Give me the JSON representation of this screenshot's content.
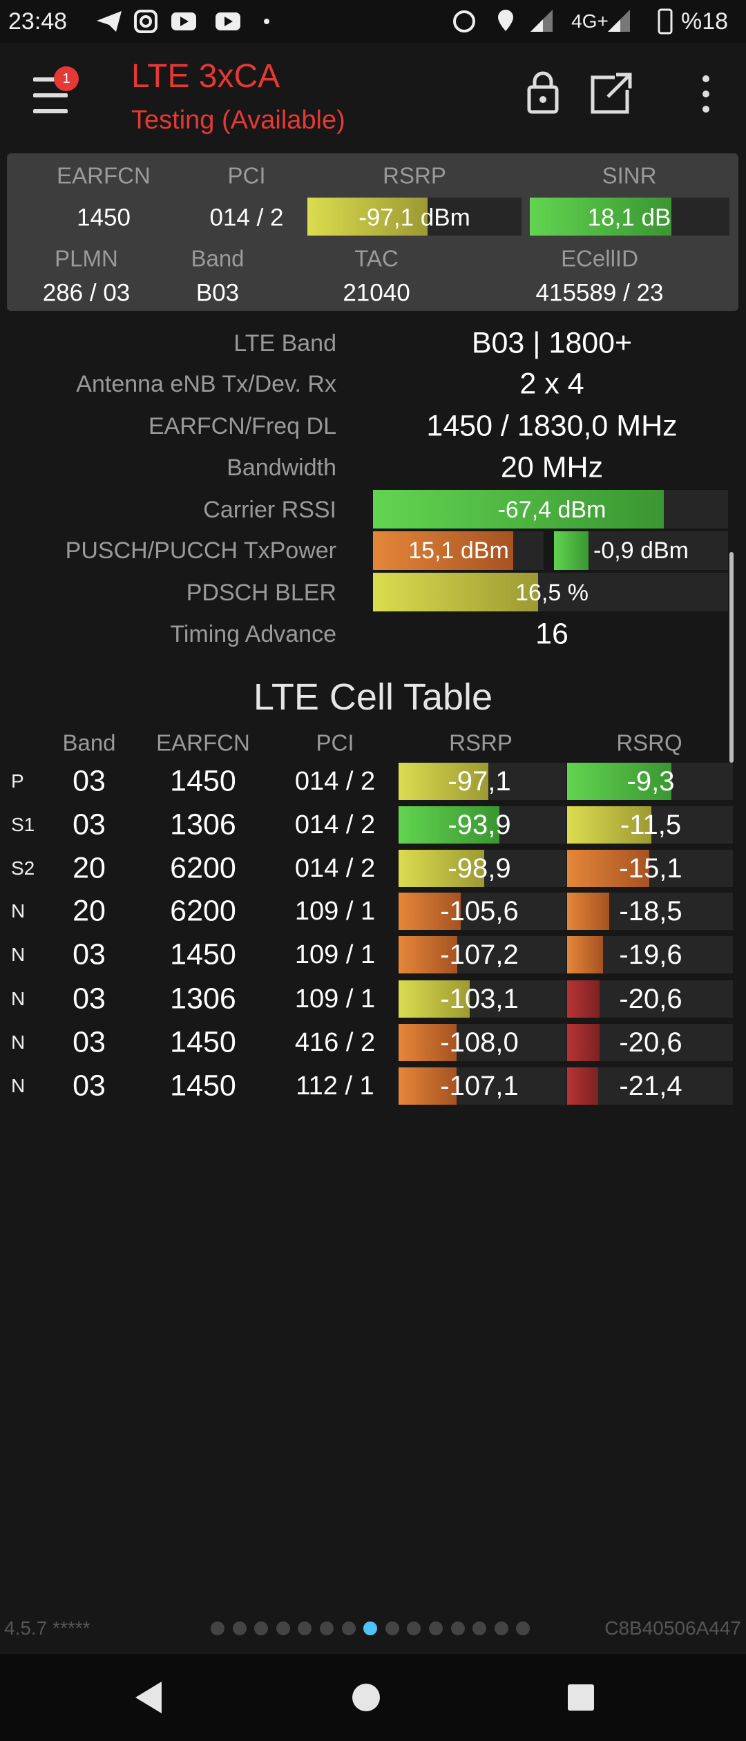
{
  "status_bar": {
    "time": "23:48",
    "network": "4G+",
    "battery": "%18"
  },
  "app_bar": {
    "badge": "1",
    "title": "LTE 3xCA",
    "subtitle": "Testing (Available)"
  },
  "summary": {
    "headers_1": [
      "EARFCN",
      "PCI",
      "RSRP",
      "SINR"
    ],
    "values_1": [
      "1450",
      "014 / 2",
      "-97,1 dBm",
      "18,1 dB"
    ],
    "headers_2": [
      "PLMN",
      "Band",
      "TAC",
      "ECellID"
    ],
    "values_2": [
      "286 / 03",
      "B03",
      "21040",
      "415589 / 23"
    ]
  },
  "details": [
    {
      "label": "LTE Band",
      "value": "B03 | 1800+"
    },
    {
      "label": "Antenna eNB Tx/Dev. Rx",
      "value": "2 x 4"
    },
    {
      "label": "EARFCN/Freq DL",
      "value": "1450 / 1830,0 MHz"
    },
    {
      "label": "Bandwidth",
      "value": "20 MHz"
    },
    {
      "label": "Carrier RSSI",
      "value": "-67,4 dBm"
    },
    {
      "label": "PUSCH/PUCCH TxPower",
      "values": [
        "15,1 dBm",
        "-0,9 dBm"
      ]
    },
    {
      "label": "PDSCH BLER",
      "value": "16,5 %"
    },
    {
      "label": "Timing Advance",
      "value": "16"
    }
  ],
  "cell_table": {
    "title": "LTE Cell Table",
    "headers": [
      "Band",
      "EARFCN",
      "PCI",
      "RSRP",
      "RSRQ"
    ],
    "rows": [
      [
        "P",
        "03",
        "1450",
        "014 / 2",
        "-97,1",
        "-9,3"
      ],
      [
        "S1",
        "03",
        "1306",
        "014 / 2",
        "-93,9",
        "-11,5"
      ],
      [
        "S2",
        "20",
        "6200",
        "014 / 2",
        "-98,9",
        "-15,1"
      ],
      [
        "N",
        "20",
        "6200",
        "109 / 1",
        "-105,6",
        "-18,5"
      ],
      [
        "N",
        "03",
        "1450",
        "109 / 1",
        "-107,2",
        "-19,6"
      ],
      [
        "N",
        "03",
        "1306",
        "109 / 1",
        "-103,1",
        "-20,6"
      ],
      [
        "N",
        "03",
        "1450",
        "416 / 2",
        "-108,0",
        "-20,6"
      ],
      [
        "N",
        "03",
        "1450",
        "112 / 1",
        "-107,1",
        "-21,4"
      ]
    ]
  },
  "footer": {
    "version": "4.5.7 *****",
    "device_id": "C8B40506A447"
  }
}
